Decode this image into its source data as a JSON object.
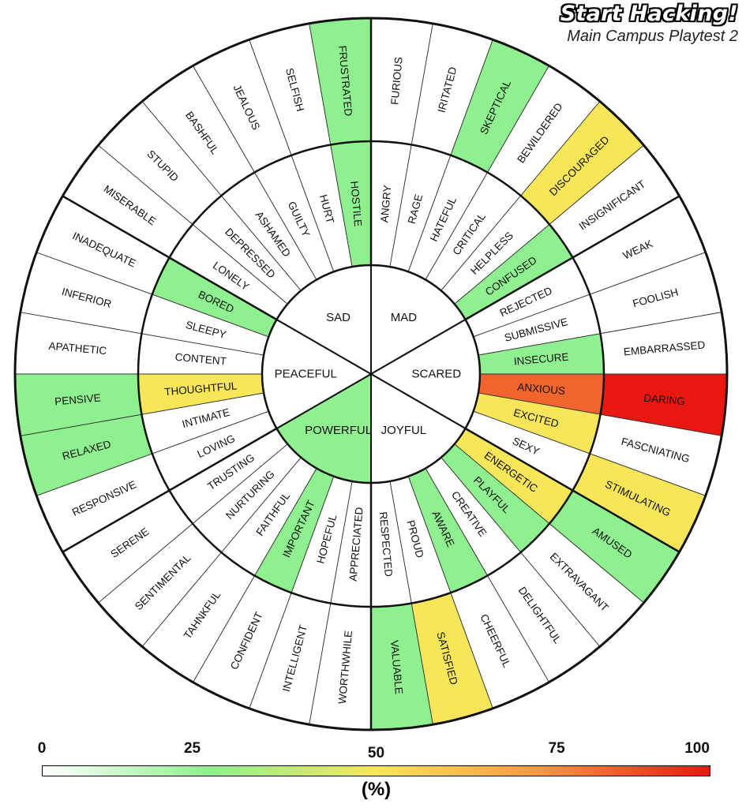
{
  "title": {
    "main": "Start Hacking!",
    "sub": "Main Campus Playtest 2"
  },
  "scale": {
    "ticks": [
      "0",
      "25",
      "50",
      "75",
      "100"
    ],
    "unit": "(%)"
  },
  "colors": {
    "grad_0": "#ffffff",
    "grad_25": "#8ef08e",
    "grad_50": "#f8e65a",
    "grad_75": "#f89640",
    "grad_100": "#e81810"
  },
  "chart_data": {
    "type": "sunburst",
    "value_unit": "%",
    "range": [
      0,
      100
    ],
    "core": [
      {
        "label": "MAD",
        "value": 0
      },
      {
        "label": "SCARED",
        "value": 0
      },
      {
        "label": "JOYFUL",
        "value": 0
      },
      {
        "label": "POWERFUL",
        "value": 25
      },
      {
        "label": "PEACEFUL",
        "value": 0
      },
      {
        "label": "SAD",
        "value": 0
      }
    ],
    "middle": [
      {
        "label": "ANGRY",
        "value": 0
      },
      {
        "label": "RAGE",
        "value": 0
      },
      {
        "label": "HATEFUL",
        "value": 0
      },
      {
        "label": "CRITICAL",
        "value": 0
      },
      {
        "label": "HELPLESS",
        "value": 0
      },
      {
        "label": "CONFUSED",
        "value": 25
      },
      {
        "label": "REJECTED",
        "value": 0
      },
      {
        "label": "SUBMISSIVE",
        "value": 0
      },
      {
        "label": "INSECURE",
        "value": 25
      },
      {
        "label": "ANXIOUS",
        "value": 85
      },
      {
        "label": "EXCITED",
        "value": 50
      },
      {
        "label": "SEXY",
        "value": 0
      },
      {
        "label": "ENERGETIC",
        "value": 50
      },
      {
        "label": "PLAYFUL",
        "value": 25
      },
      {
        "label": "CREATIVE",
        "value": 0
      },
      {
        "label": "AWARE",
        "value": 25
      },
      {
        "label": "PROUD",
        "value": 0
      },
      {
        "label": "RESPECTED",
        "value": 0
      },
      {
        "label": "APPRECIATED",
        "value": 0
      },
      {
        "label": "HOPEFUL",
        "value": 0
      },
      {
        "label": "IMPORTANT",
        "value": 25
      },
      {
        "label": "FAITHFUL",
        "value": 0
      },
      {
        "label": "NURTURING",
        "value": 0
      },
      {
        "label": "TRUSTING",
        "value": 0
      },
      {
        "label": "LOVING",
        "value": 0
      },
      {
        "label": "INTIMATE",
        "value": 0
      },
      {
        "label": "THOUGHTFUL",
        "value": 50
      },
      {
        "label": "CONTENT",
        "value": 0
      },
      {
        "label": "SLEEPY",
        "value": 0
      },
      {
        "label": "BORED",
        "value": 25
      },
      {
        "label": "LONELY",
        "value": 0
      },
      {
        "label": "DEPRESSED",
        "value": 0
      },
      {
        "label": "ASHAMED",
        "value": 0
      },
      {
        "label": "GUILTY",
        "value": 0
      },
      {
        "label": "HURT",
        "value": 0
      },
      {
        "label": "HOSTILE",
        "value": 25
      }
    ],
    "outer": [
      {
        "label": "FURIOUS",
        "value": 0
      },
      {
        "label": "IRITATED",
        "value": 0
      },
      {
        "label": "SKEPTICAL",
        "value": 25
      },
      {
        "label": "BEWILDERED",
        "value": 0
      },
      {
        "label": "DISCOURAGED",
        "value": 50
      },
      {
        "label": "INSIGNIFICANT",
        "value": 0
      },
      {
        "label": "WEAK",
        "value": 0
      },
      {
        "label": "FOOLISH",
        "value": 0
      },
      {
        "label": "EMBARRASSED",
        "value": 0
      },
      {
        "label": "DARING",
        "value": 100
      },
      {
        "label": "FASCNIATING",
        "value": 0
      },
      {
        "label": "STIMULATING",
        "value": 50
      },
      {
        "label": "AMUSED",
        "value": 25
      },
      {
        "label": "EXTRAVAGANT",
        "value": 0
      },
      {
        "label": "DELIGHTFUL",
        "value": 0
      },
      {
        "label": "CHEERFUL",
        "value": 0
      },
      {
        "label": "SATISFIED",
        "value": 50
      },
      {
        "label": "VALUABLE",
        "value": 25
      },
      {
        "label": "WORTHWHILE",
        "value": 0
      },
      {
        "label": "INTELLIGENT",
        "value": 0
      },
      {
        "label": "CONFIDENT",
        "value": 0
      },
      {
        "label": "TAHNKFUL",
        "value": 0
      },
      {
        "label": "SENTIMENTAL",
        "value": 0
      },
      {
        "label": "SERENE",
        "value": 0
      },
      {
        "label": "RESPONSIVE",
        "value": 0
      },
      {
        "label": "RELAXED",
        "value": 25
      },
      {
        "label": "PENSIVE",
        "value": 25
      },
      {
        "label": "APATHETIC",
        "value": 0
      },
      {
        "label": "INFERIOR",
        "value": 0
      },
      {
        "label": "INADEQUATE",
        "value": 0
      },
      {
        "label": "MISERABLE",
        "value": 0
      },
      {
        "label": "STUPID",
        "value": 0
      },
      {
        "label": "BASHFUL",
        "value": 0
      },
      {
        "label": "JEALOUS",
        "value": 0
      },
      {
        "label": "SELFISH",
        "value": 0
      },
      {
        "label": "FRUSTRATED",
        "value": 25
      }
    ]
  }
}
